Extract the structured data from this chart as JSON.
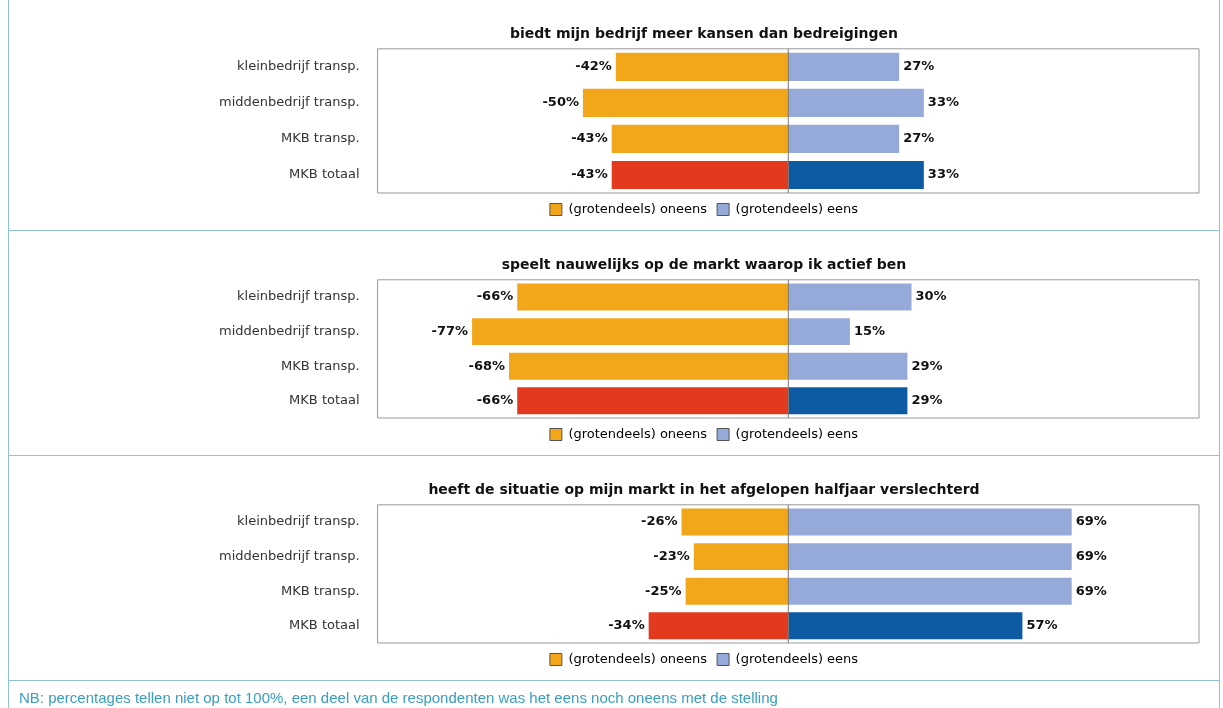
{
  "chart_data": [
    {
      "type": "bar",
      "orientation": "horizontal",
      "stacked": true,
      "title": "biedt mijn bedrijf meer kansen dan bedreigingen",
      "categories": [
        "kleinbedrijf transp.",
        "middenbedrijf transp.",
        "MKB transp.",
        "MKB totaal"
      ],
      "xlim": [
        -100,
        100
      ],
      "tick_labels": "y",
      "grid": false,
      "legend": "bottom",
      "data_labels": true,
      "series": [
        {
          "name": "(grotendeels) oneens",
          "color": "#f2a71b",
          "colors": [
            "#f2a71b",
            "#f2a71b",
            "#f2a71b",
            "#e2391f"
          ],
          "values": [
            -42,
            -50,
            -43,
            -43
          ],
          "value_labels": [
            "-42%",
            "-50%",
            "-43%",
            "-43%"
          ]
        },
        {
          "name": "(grotendeels) eens",
          "color": "#95aad8",
          "colors": [
            "#95aad8",
            "#95aad8",
            "#95aad8",
            "#0d5ca3"
          ],
          "values": [
            27,
            33,
            27,
            33
          ],
          "value_labels": [
            "27%",
            "33%",
            "27%",
            "33%"
          ]
        }
      ]
    },
    {
      "type": "bar",
      "orientation": "horizontal",
      "stacked": true,
      "title": "speelt nauwelijks op de markt waarop ik actief ben",
      "categories": [
        "kleinbedrijf transp.",
        "middenbedrijf transp.",
        "MKB transp.",
        "MKB totaal"
      ],
      "xlim": [
        -100,
        100
      ],
      "tick_labels": "y",
      "grid": false,
      "legend": "bottom",
      "data_labels": true,
      "series": [
        {
          "name": "(grotendeels) oneens",
          "color": "#f2a71b",
          "colors": [
            "#f2a71b",
            "#f2a71b",
            "#f2a71b",
            "#e2391f"
          ],
          "values": [
            -66,
            -77,
            -68,
            -66
          ],
          "value_labels": [
            "-66%",
            "-77%",
            "-68%",
            "-66%"
          ]
        },
        {
          "name": "(grotendeels) eens",
          "color": "#95aad8",
          "colors": [
            "#95aad8",
            "#95aad8",
            "#95aad8",
            "#0d5ca3"
          ],
          "values": [
            30,
            15,
            29,
            29
          ],
          "value_labels": [
            "30%",
            "15%",
            "29%",
            "29%"
          ]
        }
      ]
    },
    {
      "type": "bar",
      "orientation": "horizontal",
      "stacked": true,
      "title": "heeft de situatie op mijn markt in het afgelopen halfjaar verslechterd",
      "categories": [
        "kleinbedrijf transp.",
        "middenbedrijf transp.",
        "MKB transp.",
        "MKB totaal"
      ],
      "xlim": [
        -100,
        100
      ],
      "tick_labels": "y",
      "grid": false,
      "legend": "bottom",
      "data_labels": true,
      "annotations": [
        "NB: percentages tellen niet op tot 100%, een deel van de respondenten was het eens noch oneens met de stelling"
      ],
      "series": [
        {
          "name": "(grotendeels) oneens",
          "color": "#f2a71b",
          "colors": [
            "#f2a71b",
            "#f2a71b",
            "#f2a71b",
            "#e2391f"
          ],
          "values": [
            -26,
            -23,
            -25,
            -34
          ],
          "value_labels": [
            "-26%",
            "-23%",
            "-25%",
            "-34%"
          ]
        },
        {
          "name": "(grotendeels) eens",
          "color": "#95aad8",
          "colors": [
            "#95aad8",
            "#95aad8",
            "#95aad8",
            "#0d5ca3"
          ],
          "values": [
            69,
            69,
            69,
            57
          ],
          "value_labels": [
            "69%",
            "69%",
            "69%",
            "57%"
          ]
        }
      ]
    }
  ]
}
